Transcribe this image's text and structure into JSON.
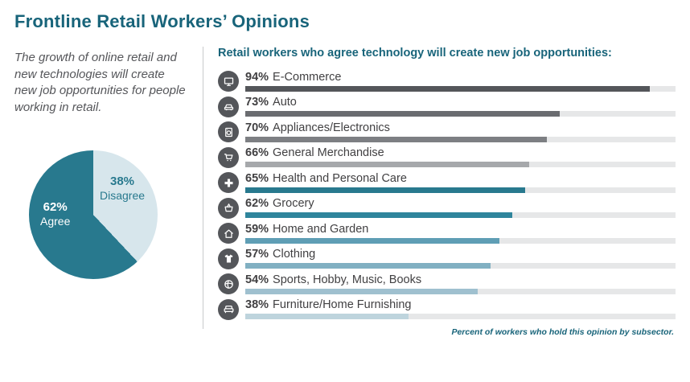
{
  "title": "Frontline Retail Workers’ Opinions",
  "intro": "The growth of online retail and new technologies will create new job opportunities for people working in retail.",
  "chart_heading": "Retail workers who agree technology will create new job opportunities:",
  "footnote": "Percent of workers who hold this opinion by subsector.",
  "pie": {
    "agree_pct": "62%",
    "agree_label": "Agree",
    "agree_value": 62,
    "disagree_pct": "38%",
    "disagree_label": "Disagree",
    "disagree_value": 38
  },
  "colors": {
    "agree": "#28798e",
    "disagree": "#d7e6ec",
    "accent_teal": "#18647a",
    "icon_badge": "#54565a",
    "bar_track": "#e6e7e8"
  },
  "rows": [
    {
      "pct": "94%",
      "value": 94,
      "label": "E-Commerce",
      "icon": "monitor-icon",
      "color": "#54565a"
    },
    {
      "pct": "73%",
      "value": 73,
      "label": "Auto",
      "icon": "car-icon",
      "color": "#6a6c70"
    },
    {
      "pct": "70%",
      "value": 70,
      "label": "Appliances/Electronics",
      "icon": "appliance-icon",
      "color": "#7d7f83"
    },
    {
      "pct": "66%",
      "value": 66,
      "label": "General Merchandise",
      "icon": "cart-icon",
      "color": "#a6a8ab"
    },
    {
      "pct": "65%",
      "value": 65,
      "label": "Health and Personal Care",
      "icon": "medical-cross-icon",
      "color": "#28798e"
    },
    {
      "pct": "62%",
      "value": 62,
      "label": "Grocery",
      "icon": "basket-icon",
      "color": "#2f859c"
    },
    {
      "pct": "59%",
      "value": 59,
      "label": "Home and Garden",
      "icon": "house-icon",
      "color": "#5f9eb5"
    },
    {
      "pct": "57%",
      "value": 57,
      "label": "Clothing",
      "icon": "shirt-icon",
      "color": "#81b0c2"
    },
    {
      "pct": "54%",
      "value": 54,
      "label": "Sports, Hobby, Music, Books",
      "icon": "ball-icon",
      "color": "#9fc0cf"
    },
    {
      "pct": "38%",
      "value": 38,
      "label": "Furniture/Home Furnishing",
      "icon": "couch-icon",
      "color": "#bed4dd"
    }
  ],
  "chart_data": [
    {
      "type": "pie",
      "title": "Frontline retail workers' opinion on whether online retail/new tech will create new job opportunities",
      "categories": [
        "Agree",
        "Disagree"
      ],
      "values": [
        62,
        38
      ],
      "colors": [
        "#28798e",
        "#d7e6ec"
      ],
      "legend_position": "inside"
    },
    {
      "type": "bar",
      "title": "Retail workers who agree technology will create new job opportunities:",
      "orientation": "horizontal",
      "categories": [
        "E-Commerce",
        "Auto",
        "Appliances/Electronics",
        "General Merchandise",
        "Health and Personal Care",
        "Grocery",
        "Home and Garden",
        "Clothing",
        "Sports, Hobby, Music, Books",
        "Furniture/Home Furnishing"
      ],
      "values": [
        94,
        73,
        70,
        66,
        65,
        62,
        59,
        57,
        54,
        38
      ],
      "xlabel": "Percent of workers who hold this opinion by subsector",
      "ylabel": "",
      "xlim": [
        0,
        100
      ],
      "grid": false,
      "data_labels": "percent shown at left of each category"
    }
  ]
}
